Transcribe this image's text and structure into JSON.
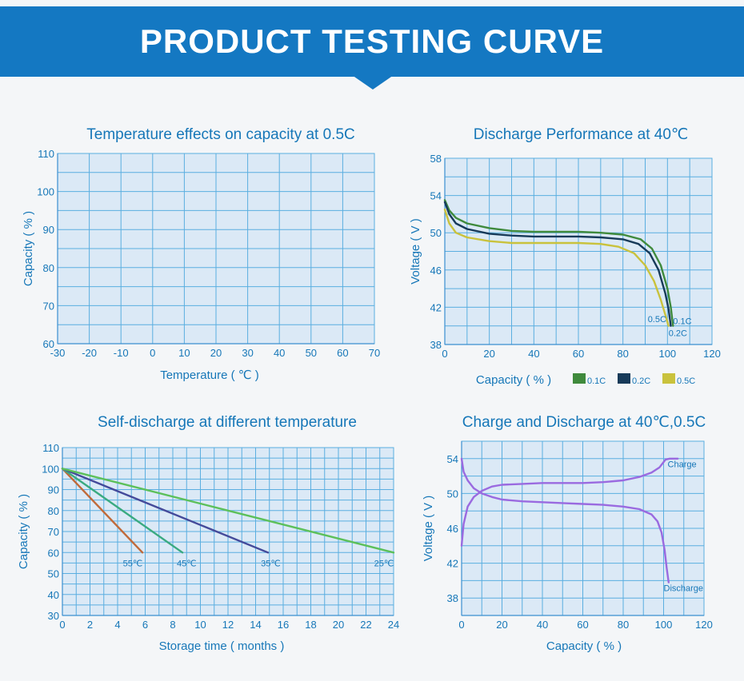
{
  "header": {
    "title": "PRODUCT TESTING CURVE"
  },
  "chart_data": [
    {
      "id": "temp",
      "type": "line",
      "title": "Temperature effects on capacity at 0.5C",
      "xlabel": "Temperature ( ℃ )",
      "ylabel": "Capacity ( % )",
      "xlim": [
        -30,
        70
      ],
      "ylim": [
        60,
        110
      ],
      "xticks": [
        -30,
        -20,
        -10,
        0,
        10,
        20,
        30,
        40,
        50,
        60,
        70
      ],
      "yticks": [
        60,
        70,
        80,
        90,
        100,
        110
      ],
      "grid": true,
      "series": []
    },
    {
      "id": "discharge",
      "type": "line",
      "title": "Discharge Performance at 40℃",
      "xlabel": "Capacity ( % )",
      "ylabel": "Voltage ( V )",
      "xlim": [
        0,
        120
      ],
      "ylim": [
        38,
        58
      ],
      "xticks": [
        0,
        20,
        40,
        60,
        80,
        100,
        120
      ],
      "yticks": [
        38,
        42,
        46,
        50,
        54,
        58
      ],
      "grid": true,
      "legend_position": "bottom",
      "series": [
        {
          "name": "0.1C",
          "color": "#3f8a3c",
          "x": [
            0,
            2,
            5,
            10,
            20,
            30,
            40,
            50,
            60,
            70,
            80,
            88,
            93,
            97,
            100,
            101.5,
            102.5
          ],
          "y": [
            53.5,
            52.4,
            51.6,
            51.0,
            50.5,
            50.2,
            50.1,
            50.1,
            50.1,
            50.0,
            49.8,
            49.3,
            48.3,
            46.5,
            44.0,
            42.0,
            40.0
          ]
        },
        {
          "name": "0.2C",
          "color": "#173a59",
          "x": [
            0,
            2,
            5,
            10,
            20,
            30,
            40,
            50,
            60,
            70,
            80,
            87,
            92,
            96,
            99,
            100.5,
            101.5
          ],
          "y": [
            53.3,
            52.0,
            51.0,
            50.4,
            49.9,
            49.7,
            49.6,
            49.6,
            49.6,
            49.5,
            49.3,
            48.8,
            47.8,
            46.0,
            43.5,
            41.8,
            40.0
          ]
        },
        {
          "name": "0.5C",
          "color": "#c9c23c",
          "x": [
            0,
            2,
            5,
            10,
            20,
            30,
            40,
            50,
            60,
            70,
            78,
            85,
            90,
            94,
            97,
            99,
            100.5
          ],
          "y": [
            52.5,
            51.0,
            50.0,
            49.5,
            49.1,
            48.9,
            48.9,
            48.9,
            48.9,
            48.8,
            48.5,
            47.8,
            46.5,
            44.8,
            42.8,
            41.2,
            40.0
          ]
        }
      ],
      "annotations": [
        {
          "text": "0.5C",
          "x": 99.5,
          "y": 40.4,
          "anchor": "end"
        },
        {
          "text": "0.1C",
          "x": 102.5,
          "y": 40.2,
          "anchor": "start"
        },
        {
          "text": "0.2C",
          "x": 100.5,
          "y": 38.9,
          "anchor": "start"
        }
      ]
    },
    {
      "id": "selfdischarge",
      "type": "line",
      "title": "Self-discharge at different temperature",
      "xlabel": "Storage time ( months )",
      "ylabel": "Capacity ( % )",
      "xlim": [
        0,
        24
      ],
      "ylim": [
        30,
        110
      ],
      "xticks": [
        0,
        2,
        4,
        6,
        8,
        10,
        12,
        14,
        16,
        18,
        20,
        22,
        24
      ],
      "yticks": [
        30,
        40,
        50,
        60,
        70,
        80,
        90,
        100,
        110
      ],
      "grid": true,
      "series": [
        {
          "name": "55℃",
          "color": "#c06a3a",
          "x": [
            0,
            5.8
          ],
          "y": [
            100,
            60
          ]
        },
        {
          "name": "45℃",
          "color": "#3aaa80",
          "x": [
            0,
            8.7
          ],
          "y": [
            100,
            60
          ]
        },
        {
          "name": "35℃",
          "color": "#444a9a",
          "x": [
            0,
            14.9
          ],
          "y": [
            100,
            60
          ]
        },
        {
          "name": "25℃",
          "color": "#5cc05a",
          "x": [
            0,
            24
          ],
          "y": [
            100,
            60
          ]
        }
      ],
      "annotations": [
        {
          "text": "55℃",
          "x": 5.1,
          "y": 53.5,
          "anchor": "middle"
        },
        {
          "text": "45℃",
          "x": 9.0,
          "y": 53.5,
          "anchor": "middle"
        },
        {
          "text": "35℃",
          "x": 15.1,
          "y": 53.5,
          "anchor": "middle"
        },
        {
          "text": "25℃",
          "x": 23.3,
          "y": 53.5,
          "anchor": "middle"
        }
      ]
    },
    {
      "id": "chargedischarge",
      "type": "line",
      "title": "Charge and Discharge at 40℃,0.5C",
      "xlabel": "Capacity ( % )",
      "ylabel": "Voltage ( V )",
      "xlim": [
        0,
        120
      ],
      "ylim": [
        36,
        56
      ],
      "xticks": [
        0,
        20,
        40,
        60,
        80,
        100,
        120
      ],
      "yticks": [
        38,
        42,
        46,
        50,
        54
      ],
      "grid": true,
      "series": [
        {
          "name": "Charge",
          "color": "#9a6ae0",
          "x": [
            0,
            1,
            3,
            6,
            10,
            15,
            20,
            30,
            40,
            50,
            60,
            70,
            80,
            88,
            94,
            98,
            101,
            103,
            107
          ],
          "y": [
            44.0,
            46.5,
            48.5,
            49.6,
            50.3,
            50.8,
            51.0,
            51.1,
            51.2,
            51.2,
            51.2,
            51.3,
            51.5,
            51.9,
            52.4,
            53.0,
            53.9,
            54.0,
            54.0
          ]
        },
        {
          "name": "Discharge",
          "color": "#9a6ae0",
          "x": [
            0,
            1,
            3,
            6,
            10,
            15,
            20,
            30,
            40,
            50,
            60,
            70,
            80,
            88,
            94,
            97,
            99,
            100.5,
            101.5,
            102.5
          ],
          "y": [
            54.0,
            52.5,
            51.5,
            50.6,
            50.0,
            49.6,
            49.3,
            49.1,
            49.0,
            48.9,
            48.8,
            48.7,
            48.5,
            48.2,
            47.6,
            46.8,
            45.5,
            43.5,
            41.5,
            39.8
          ]
        }
      ],
      "annotations": [
        {
          "text": "Charge",
          "x": 102,
          "y": 53.0,
          "anchor": "start"
        },
        {
          "text": "Discharge",
          "x": 100,
          "y": 38.8,
          "anchor": "start"
        }
      ]
    }
  ]
}
